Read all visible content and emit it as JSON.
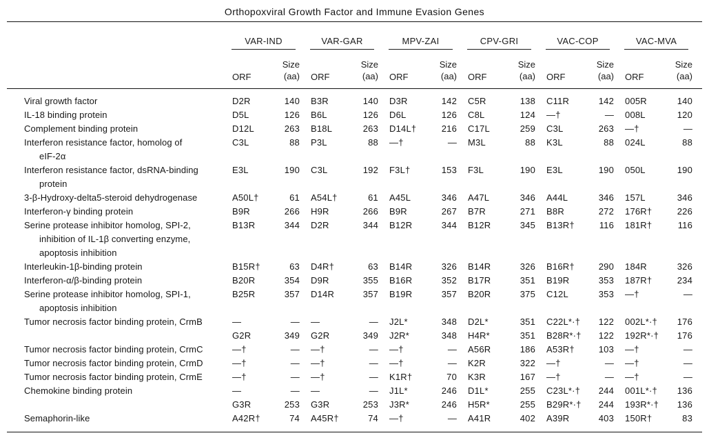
{
  "title": "Orthopoxviral Growth Factor and Immune Evasion Genes",
  "colors": {
    "background": "#ffffff",
    "text": "#161616",
    "rule": "#111111"
  },
  "table": {
    "groups": [
      {
        "name": "VAR-IND"
      },
      {
        "name": "VAR-GAR"
      },
      {
        "name": "MPV-ZAI"
      },
      {
        "name": "CPV-GRI"
      },
      {
        "name": "VAC-COP"
      },
      {
        "name": "VAC-MVA"
      }
    ],
    "subheaders": {
      "orf": "ORF",
      "size": "Size\n(aa)"
    },
    "rows": [
      {
        "label": "Viral growth factor",
        "cells": [
          [
            "D2R",
            "140"
          ],
          [
            "B3R",
            "140"
          ],
          [
            "D3R",
            "142"
          ],
          [
            "C5R",
            "138"
          ],
          [
            "C11R",
            "142"
          ],
          [
            "005R",
            "140"
          ]
        ]
      },
      {
        "label": "IL-18 binding protein",
        "cells": [
          [
            "D5L",
            "126"
          ],
          [
            "B6L",
            "126"
          ],
          [
            "D6L",
            "126"
          ],
          [
            "C8L",
            "124"
          ],
          [
            "—†",
            "—"
          ],
          [
            "008L",
            "120"
          ]
        ]
      },
      {
        "label": "Complement binding protein",
        "cells": [
          [
            "D12L",
            "263"
          ],
          [
            "B18L",
            "263"
          ],
          [
            "D14L†",
            "216"
          ],
          [
            "C17L",
            "259"
          ],
          [
            "C3L",
            "263"
          ],
          [
            "—†",
            "—"
          ]
        ]
      },
      {
        "label": "Interferon resistance factor, homolog of\neIF-2α",
        "cells": [
          [
            "C3L",
            "88"
          ],
          [
            "P3L",
            "88"
          ],
          [
            "—†",
            "—"
          ],
          [
            "M3L",
            "88"
          ],
          [
            "K3L",
            "88"
          ],
          [
            "024L",
            "88"
          ]
        ]
      },
      {
        "label": "Interferon resistance factor, dsRNA-binding\nprotein",
        "cells": [
          [
            "E3L",
            "190"
          ],
          [
            "C3L",
            "192"
          ],
          [
            "F3L†",
            "153"
          ],
          [
            "F3L",
            "190"
          ],
          [
            "E3L",
            "190"
          ],
          [
            "050L",
            "190"
          ]
        ]
      },
      {
        "label": "3-β-Hydroxy-delta5-steroid dehydrogenase",
        "cells": [
          [
            "A50L†",
            "61"
          ],
          [
            "A54L†",
            "61"
          ],
          [
            "A45L",
            "346"
          ],
          [
            "A47L",
            "346"
          ],
          [
            "A44L",
            "346"
          ],
          [
            "157L",
            "346"
          ]
        ]
      },
      {
        "label": "Interferon-γ binding protein",
        "cells": [
          [
            "B9R",
            "266"
          ],
          [
            "H9R",
            "266"
          ],
          [
            "B9R",
            "267"
          ],
          [
            "B7R",
            "271"
          ],
          [
            "B8R",
            "272"
          ],
          [
            "176R†",
            "226"
          ]
        ]
      },
      {
        "label": "Serine protease inhibitor homolog, SPI-2,\ninhibition of IL-1β converting enzyme,\napoptosis inhibition",
        "cells": [
          [
            "B13R",
            "344"
          ],
          [
            "D2R",
            "344"
          ],
          [
            "B12R",
            "344"
          ],
          [
            "B12R",
            "345"
          ],
          [
            "B13R†",
            "116"
          ],
          [
            "181R†",
            "116"
          ]
        ]
      },
      {
        "label": "Interleukin-1β-binding protein",
        "cells": [
          [
            "B15R†",
            "63"
          ],
          [
            "D4R†",
            "63"
          ],
          [
            "B14R",
            "326"
          ],
          [
            "B14R",
            "326"
          ],
          [
            "B16R†",
            "290"
          ],
          [
            "184R",
            "326"
          ]
        ]
      },
      {
        "label": "Interferon-α/β-binding protein",
        "cells": [
          [
            "B20R",
            "354"
          ],
          [
            "D9R",
            "355"
          ],
          [
            "B16R",
            "352"
          ],
          [
            "B17R",
            "351"
          ],
          [
            "B19R",
            "353"
          ],
          [
            "187R†",
            "234"
          ]
        ]
      },
      {
        "label": "Serine protease inhibitor homolog, SPI-1,\napoptosis inhibition",
        "cells": [
          [
            "B25R",
            "357"
          ],
          [
            "D14R",
            "357"
          ],
          [
            "B19R",
            "357"
          ],
          [
            "B20R",
            "375"
          ],
          [
            "C12L",
            "353"
          ],
          [
            "—†",
            "—"
          ]
        ]
      },
      {
        "label": "Tumor necrosis factor binding protein, CrmB",
        "cells": [
          [
            "—",
            "—"
          ],
          [
            "—",
            "—"
          ],
          [
            "J2L*",
            "348"
          ],
          [
            "D2L*",
            "351"
          ],
          [
            "C22L*·†",
            "122"
          ],
          [
            "002L*·†",
            "176"
          ]
        ]
      },
      {
        "label": "",
        "cells": [
          [
            "G2R",
            "349"
          ],
          [
            "G2R",
            "349"
          ],
          [
            "J2R*",
            "348"
          ],
          [
            "H4R*",
            "351"
          ],
          [
            "B28R*·†",
            "122"
          ],
          [
            "192R*·†",
            "176"
          ]
        ]
      },
      {
        "label": "Tumor necrosis factor binding protein, CrmC",
        "cells": [
          [
            "—†",
            "—"
          ],
          [
            "—†",
            "—"
          ],
          [
            "—†",
            "—"
          ],
          [
            "A56R",
            "186"
          ],
          [
            "A53R†",
            "103"
          ],
          [
            "—†",
            "—"
          ]
        ]
      },
      {
        "label": "Tumor necrosis factor binding protein, CrmD",
        "cells": [
          [
            "—†",
            "—"
          ],
          [
            "—†",
            "—"
          ],
          [
            "—†",
            "—"
          ],
          [
            "K2R",
            "322"
          ],
          [
            "—†",
            "—"
          ],
          [
            "—†",
            "—"
          ]
        ]
      },
      {
        "label": "Tumor necrosis factor binding protein, CrmE",
        "cells": [
          [
            "—†",
            "—"
          ],
          [
            "—†",
            "—"
          ],
          [
            "K1R†",
            "70"
          ],
          [
            "K3R",
            "167"
          ],
          [
            "—†",
            "—"
          ],
          [
            "—†",
            "—"
          ]
        ]
      },
      {
        "label": "Chemokine binding protein",
        "cells": [
          [
            "—",
            "—"
          ],
          [
            "—",
            "—"
          ],
          [
            "J1L*",
            "246"
          ],
          [
            "D1L*",
            "255"
          ],
          [
            "C23L*·†",
            "244"
          ],
          [
            "001L*·†",
            "136"
          ]
        ]
      },
      {
        "label": "",
        "cells": [
          [
            "G3R",
            "253"
          ],
          [
            "G3R",
            "253"
          ],
          [
            "J3R*",
            "246"
          ],
          [
            "H5R*",
            "255"
          ],
          [
            "B29R*·†",
            "244"
          ],
          [
            "193R*·†",
            "136"
          ]
        ]
      },
      {
        "label": "Semaphorin-like",
        "cells": [
          [
            "A42R†",
            "74"
          ],
          [
            "A45R†",
            "74"
          ],
          [
            "—†",
            "—"
          ],
          [
            "A41R",
            "402"
          ],
          [
            "A39R",
            "403"
          ],
          [
            "150R†",
            "83"
          ]
        ]
      }
    ]
  }
}
